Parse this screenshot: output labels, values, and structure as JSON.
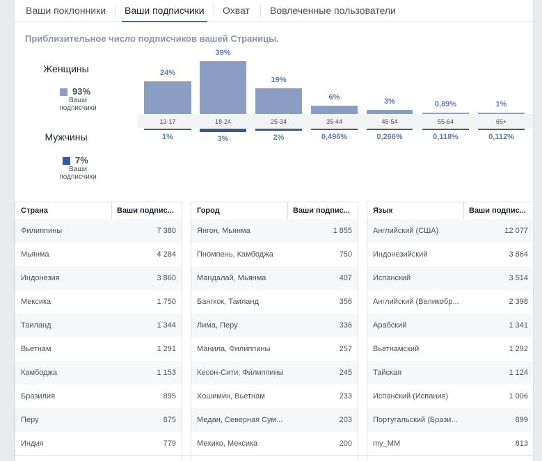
{
  "tabs": [
    "Ваши поклонники",
    "Ваши подписчики",
    "Охват",
    "Вовлеченные пользователи"
  ],
  "active_tab": "Ваши подписчики",
  "subtitle": "Приблизительное число подписчиков вашей Страницы.",
  "women": {
    "label": "Женщины",
    "pct": "93%",
    "caption": "Ваши подписчики",
    "color": "#8b9dc3"
  },
  "men": {
    "label": "Мужчины",
    "pct": "7%",
    "caption": "Ваши подписчики",
    "color": "#365899"
  },
  "chart_data": {
    "type": "bar",
    "categories": [
      "13-17",
      "18-24",
      "25-34",
      "35-44",
      "45-54",
      "55-64",
      "65+"
    ],
    "series": [
      {
        "name": "Женщины",
        "values": [
          24,
          39,
          19,
          6,
          3,
          0.89,
          1
        ],
        "labels": [
          "24%",
          "39%",
          "19%",
          "6%",
          "3%",
          "0,89%",
          "1%"
        ]
      },
      {
        "name": "Мужчины",
        "values": [
          1,
          3,
          2,
          0.496,
          0.266,
          0.118,
          0.112
        ],
        "labels": [
          "1%",
          "3%",
          "2%",
          "0,496%",
          "0,266%",
          "0,118%",
          "0,112%"
        ]
      }
    ]
  },
  "tables": [
    {
      "col1": "Страна",
      "col2": "Ваши подпис...",
      "rows": [
        [
          "Филиппины",
          "7 380"
        ],
        [
          "Мьянма",
          "4 284"
        ],
        [
          "Индонезия",
          "3 860"
        ],
        [
          "Мексика",
          "1 750"
        ],
        [
          "Таиланд",
          "1 344"
        ],
        [
          "Вьетнам",
          "1 291"
        ],
        [
          "Камбоджа",
          "1 153"
        ],
        [
          "Бразилия",
          "895"
        ],
        [
          "Перу",
          "875"
        ],
        [
          "Индия",
          "779"
        ]
      ]
    },
    {
      "col1": "Город",
      "col2": "Ваши подпис...",
      "rows": [
        [
          "Янгон, Мьянма",
          "1 855"
        ],
        [
          "Пномпень, Камбоджа",
          "750"
        ],
        [
          "Мандалай, Мьянма",
          "407"
        ],
        [
          "Бангкок, Таиланд",
          "356"
        ],
        [
          "Лима, Перу",
          "336"
        ],
        [
          "Манила, Филиппины",
          "257"
        ],
        [
          "Кесон-Сити, Филиппины",
          "245"
        ],
        [
          "Хошимин, Вьетнам",
          "233"
        ],
        [
          "Медан, Северная Сум...",
          "203"
        ],
        [
          "Мехико, Мексика",
          "200"
        ]
      ]
    },
    {
      "col1": "Язык",
      "col2": "Ваши подпис...",
      "rows": [
        [
          "Английский (США)",
          "12 077"
        ],
        [
          "Индонезийский",
          "3 864"
        ],
        [
          "Испанский",
          "3 514"
        ],
        [
          "Английский (Великобр...",
          "2 398"
        ],
        [
          "Арабский",
          "1 341"
        ],
        [
          "Вьетнамский",
          "1 292"
        ],
        [
          "Тайская",
          "1 124"
        ],
        [
          "Испанский (Испания)",
          "1 006"
        ],
        [
          "Португальский (Брази...",
          "899"
        ],
        [
          "my_MM",
          "813"
        ]
      ]
    }
  ]
}
